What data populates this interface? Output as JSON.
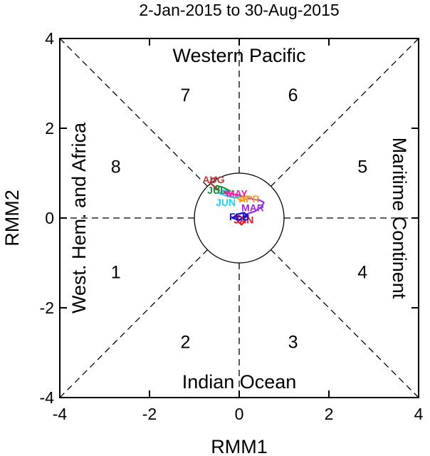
{
  "chart_data": {
    "type": "line",
    "title": "2-Jan-2015 to 30-Aug-2015",
    "xlabel": "RMM1",
    "ylabel": "RMM2",
    "xlim": [
      -4,
      4
    ],
    "ylim": [
      -4,
      4
    ],
    "x_ticks": [
      -4,
      -2,
      0,
      2,
      4
    ],
    "y_ticks": [
      -4,
      -2,
      0,
      2,
      4
    ],
    "x_tick_labels": [
      "-4",
      "-2",
      "0",
      "2",
      "4"
    ],
    "y_tick_labels": [
      "-4",
      "-2",
      "0",
      "2",
      "4"
    ],
    "unit_circle_radius": 1,
    "phase_labels": [
      {
        "label": "1",
        "x": -2.75,
        "y": -1.2
      },
      {
        "label": "2",
        "x": -1.2,
        "y": -2.75
      },
      {
        "label": "3",
        "x": 1.2,
        "y": -2.75
      },
      {
        "label": "4",
        "x": 2.75,
        "y": -1.2
      },
      {
        "label": "5",
        "x": 2.75,
        "y": 1.15
      },
      {
        "label": "6",
        "x": 1.2,
        "y": 2.75
      },
      {
        "label": "7",
        "x": -1.2,
        "y": 2.75
      },
      {
        "label": "8",
        "x": -2.75,
        "y": 1.15
      }
    ],
    "region_labels": {
      "top": "Western Pacific",
      "bottom": "Indian Ocean",
      "left": "West. Hem. and Africa",
      "right": "Maritime Continent"
    },
    "series": [
      {
        "name": "JAN",
        "color": "#e8141e",
        "label_xy": [
          0.1,
          -0.04
        ],
        "x": [
          -0.15,
          0.0,
          0.15,
          0.05,
          -0.05,
          0.1
        ],
        "y": [
          0.0,
          0.05,
          -0.05,
          -0.15,
          -0.05,
          0.0
        ]
      },
      {
        "name": "FEB",
        "color": "#1414d2",
        "label_xy": [
          0.0,
          0.03
        ],
        "x": [
          0.1,
          0.2,
          0.1,
          -0.05,
          -0.15,
          0.0,
          0.2
        ],
        "y": [
          0.0,
          0.05,
          0.12,
          0.08,
          0.0,
          -0.05,
          0.1
        ]
      },
      {
        "name": "MAR",
        "color": "#a028f0",
        "label_xy": [
          0.3,
          0.23
        ],
        "x": [
          0.2,
          0.35,
          0.5,
          0.55,
          0.45,
          0.3,
          0.2
        ],
        "y": [
          0.1,
          0.15,
          0.25,
          0.35,
          0.4,
          0.42,
          0.45
        ]
      },
      {
        "name": "APR",
        "color": "#f59b1e",
        "label_xy": [
          0.22,
          0.43
        ],
        "x": [
          0.2,
          0.1,
          -0.05,
          0.05,
          0.15,
          0.0
        ],
        "y": [
          0.45,
          0.5,
          0.45,
          0.38,
          0.42,
          0.5
        ]
      },
      {
        "name": "MAY",
        "color": "#f01ea0",
        "label_xy": [
          -0.05,
          0.55
        ],
        "x": [
          0.0,
          -0.2,
          -0.35,
          -0.25,
          -0.1,
          0.05
        ],
        "y": [
          0.5,
          0.55,
          0.6,
          0.5,
          0.45,
          0.5
        ]
      },
      {
        "name": "JUN",
        "color": "#1ed2f5",
        "label_xy": [
          -0.3,
          0.35
        ],
        "x": [
          0.05,
          -0.1,
          -0.3,
          -0.45,
          -0.35,
          -0.2
        ],
        "y": [
          0.5,
          0.45,
          0.5,
          0.55,
          0.62,
          0.6
        ]
      },
      {
        "name": "JUL",
        "color": "#1e8c3c",
        "label_xy": [
          -0.5,
          0.62
        ],
        "x": [
          -0.2,
          -0.35,
          -0.5,
          -0.55,
          -0.45
        ],
        "y": [
          0.6,
          0.68,
          0.72,
          0.65,
          0.62
        ]
      },
      {
        "name": "AUG",
        "color": "#b43c3c",
        "label_xy": [
          -0.57,
          0.86
        ],
        "x": [
          -0.45,
          -0.55,
          -0.65,
          -0.6,
          -0.5,
          -0.55
        ],
        "y": [
          0.62,
          0.7,
          0.78,
          0.88,
          0.9,
          0.85
        ]
      }
    ]
  }
}
